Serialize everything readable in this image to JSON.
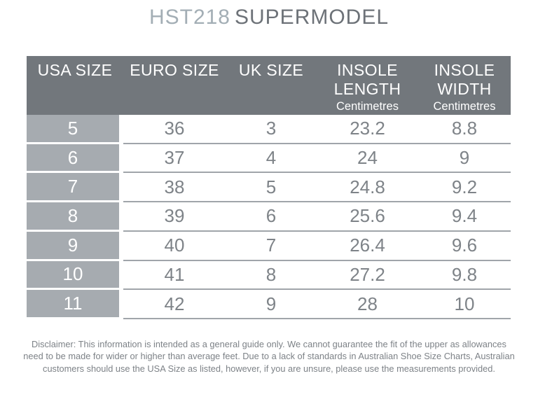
{
  "title": {
    "model": "HST218",
    "name": "SUPERMODEL"
  },
  "table": {
    "headers": [
      {
        "lines": [
          "USA SIZE"
        ],
        "sub": ""
      },
      {
        "lines": [
          "EURO SIZE"
        ],
        "sub": ""
      },
      {
        "lines": [
          "UK SIZE"
        ],
        "sub": ""
      },
      {
        "lines": [
          "INSOLE",
          "LENGTH"
        ],
        "sub": "Centimetres"
      },
      {
        "lines": [
          "INSOLE",
          "WIDTH"
        ],
        "sub": "Centimetres"
      }
    ],
    "rows": [
      [
        "5",
        "36",
        "3",
        "23.2",
        "8.8"
      ],
      [
        "6",
        "37",
        "4",
        "24",
        "9"
      ],
      [
        "7",
        "38",
        "5",
        "24.8",
        "9.2"
      ],
      [
        "8",
        "39",
        "6",
        "25.6",
        "9.4"
      ],
      [
        "9",
        "40",
        "7",
        "26.4",
        "9.6"
      ],
      [
        "10",
        "41",
        "8",
        "27.2",
        "9.8"
      ],
      [
        "11",
        "42",
        "9",
        "28",
        "10"
      ]
    ]
  },
  "chart_data": {
    "type": "table",
    "title": "HST218 SUPERMODEL",
    "columns": [
      "USA SIZE",
      "EURO SIZE",
      "UK SIZE",
      "INSOLE LENGTH (Centimetres)",
      "INSOLE WIDTH (Centimetres)"
    ],
    "rows": [
      [
        5,
        36,
        3,
        23.2,
        8.8
      ],
      [
        6,
        37,
        4,
        24,
        9
      ],
      [
        7,
        38,
        5,
        24.8,
        9.2
      ],
      [
        8,
        39,
        6,
        25.6,
        9.4
      ],
      [
        9,
        40,
        7,
        26.4,
        9.6
      ],
      [
        10,
        41,
        8,
        27.2,
        9.8
      ],
      [
        11,
        42,
        9,
        28,
        10
      ]
    ]
  },
  "disclaimer": {
    "lines": [
      "Disclaimer: This information is intended as a general guide only. We cannot guarantee the fit of the upper as allowances",
      "need to be made for wider or higher than average feet. Due to a lack of standards in Australian Shoe Size Charts, Australian",
      "customers should use the USA Size as listed, however, if you are unsure, please use the measurements provided."
    ]
  },
  "colors": {
    "header_bg": "#72777c",
    "label_bg": "#a6abb0",
    "divider": "#a0a5aa",
    "body_text": "#7e8388",
    "title_model": "#a3aeb5",
    "title_name": "#6d7278",
    "disclaimer_text": "#7d8287"
  }
}
